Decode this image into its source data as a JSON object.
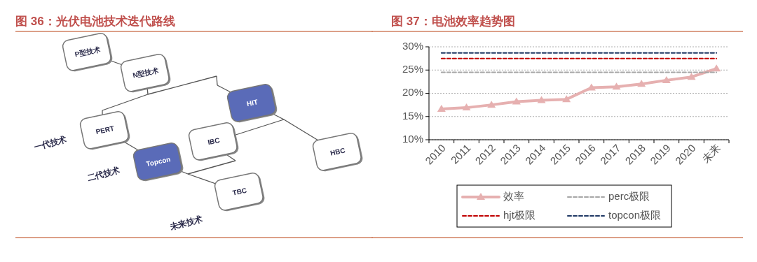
{
  "chart_data": [
    {
      "type": "other",
      "title": "图 36：光伏电池技术迭代路线",
      "annotations": [
        "P型技术",
        "N型技术",
        "HIT",
        "PERT",
        "IBC",
        "HBC",
        "Topcon",
        "TBC",
        "一代技术",
        "二代技术",
        "未来技术"
      ]
    },
    {
      "type": "line",
      "title": "图 37：电池效率趋势图",
      "categories": [
        "2010",
        "2011",
        "2012",
        "2013",
        "2014",
        "2015",
        "2016",
        "2017",
        "2018",
        "2019",
        "2020",
        "未来"
      ],
      "series": [
        {
          "name": "效率",
          "color": "#e6b0b0",
          "marker": "triangle",
          "line_style": "solid",
          "values": [
            16.6,
            16.9,
            17.5,
            18.2,
            18.5,
            18.7,
            21.2,
            21.4,
            22.0,
            22.8,
            23.5,
            25.3
          ]
        },
        {
          "name": "perc极限",
          "color": "#a6a6a6",
          "marker": "none",
          "line_style": "dashed",
          "values": [
            24.5,
            24.5,
            24.5,
            24.5,
            24.5,
            24.5,
            24.5,
            24.5,
            24.5,
            24.5,
            24.5,
            24.5
          ]
        },
        {
          "name": "hjt极限",
          "color": "#c00000",
          "marker": "none",
          "line_style": "dashed",
          "values": [
            27.5,
            27.5,
            27.5,
            27.5,
            27.5,
            27.5,
            27.5,
            27.5,
            27.5,
            27.5,
            27.5,
            27.5
          ]
        },
        {
          "name": "topcon极限",
          "color": "#1f3864",
          "marker": "none",
          "line_style": "dashed",
          "values": [
            28.7,
            28.7,
            28.7,
            28.7,
            28.7,
            28.7,
            28.7,
            28.7,
            28.7,
            28.7,
            28.7,
            28.7
          ]
        }
      ],
      "ylim": [
        10,
        30
      ],
      "yticks": [
        {
          "value": 10,
          "label": "10%"
        },
        {
          "value": 15,
          "label": "15%"
        },
        {
          "value": 20,
          "label": "20%"
        },
        {
          "value": 25,
          "label": "25%"
        },
        {
          "value": 30,
          "label": "30%"
        }
      ],
      "grid": "y",
      "legend": "bottom"
    }
  ]
}
